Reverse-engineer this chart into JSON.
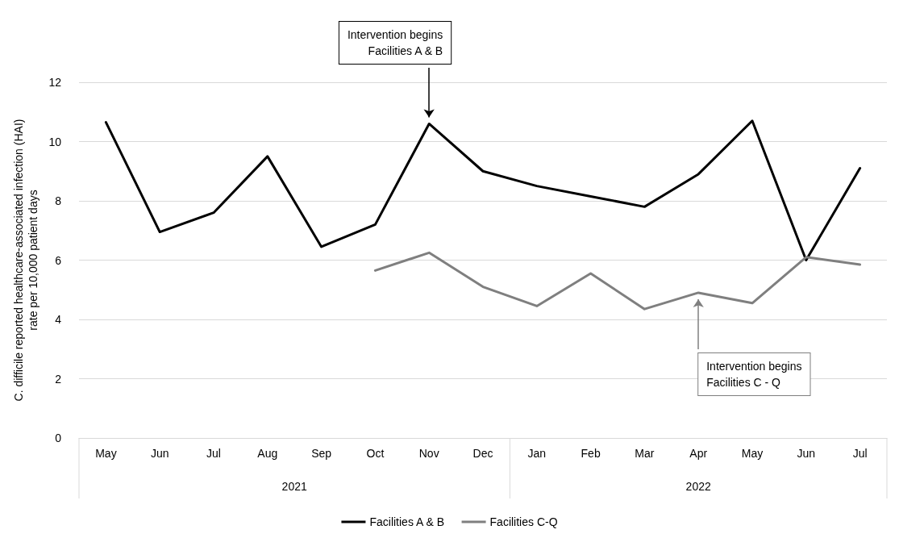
{
  "chart_data": {
    "type": "line",
    "ylabel": "C. difficile reported healthcare-associated infection (HAI)\nrate per 10,000 patient days",
    "categories": [
      "May",
      "Jun",
      "Jul",
      "Aug",
      "Sep",
      "Oct",
      "Nov",
      "Dec",
      "Jan",
      "Feb",
      "Mar",
      "Apr",
      "May",
      "Jun",
      "Jul"
    ],
    "series": [
      {
        "name": "Facilities A & B",
        "color": "#000000",
        "values": [
          10.65,
          6.95,
          7.6,
          9.5,
          6.45,
          7.2,
          10.6,
          9.0,
          8.5,
          8.15,
          7.8,
          8.9,
          10.7,
          6.0,
          9.1
        ]
      },
      {
        "name": "Facilities C-Q",
        "color": "#7f7f7f",
        "values": [
          null,
          null,
          null,
          null,
          null,
          5.65,
          6.25,
          5.1,
          4.45,
          5.55,
          4.35,
          4.9,
          4.55,
          6.1,
          5.85
        ]
      }
    ],
    "ylim": [
      0,
      12
    ],
    "yticks": [
      0,
      2,
      4,
      6,
      8,
      10,
      12
    ],
    "grid": "y",
    "legend": "bottom",
    "marker": "none",
    "line_style": "solid",
    "annotations": [
      {
        "text": "Intervention begins\nFacilities A & B",
        "x": "Nov",
        "y": 10.6
      },
      {
        "text": "Intervention begins\nFacilities C - Q",
        "x": "Apr",
        "y": 4.9
      },
      "2021",
      "2022"
    ]
  }
}
